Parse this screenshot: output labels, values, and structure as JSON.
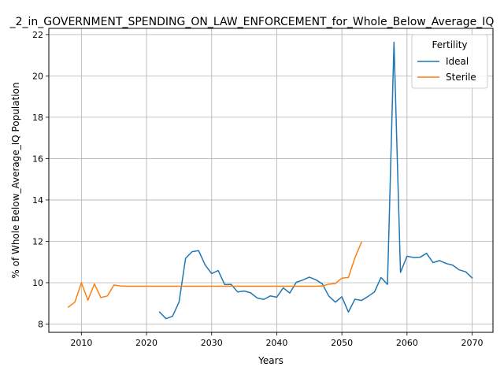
{
  "chart_data": {
    "type": "line",
    "title": "_2_in_GOVERNMENT_SPENDING_ON_LAW_ENFORCEMENT_for_Whole_Below_Average_IQ",
    "xlabel": "Years",
    "ylabel": "% of Whole Below_Average_IQ Population",
    "xlim": [
      2005.0,
      2073.2
    ],
    "ylim": [
      7.6,
      22.3
    ],
    "xticks": [
      2010,
      2020,
      2030,
      2040,
      2050,
      2060,
      2070
    ],
    "yticks": [
      8,
      10,
      12,
      14,
      16,
      18,
      20,
      22
    ],
    "grid": true,
    "legend": {
      "title": "Fertility",
      "position": "top-right"
    },
    "series": [
      {
        "name": "Ideal",
        "color": "#1f77b4",
        "x": [
          2022,
          2023,
          2024,
          2025,
          2026,
          2027,
          2028,
          2029,
          2030,
          2031,
          2032,
          2033,
          2034,
          2035,
          2036,
          2037,
          2038,
          2039,
          2040,
          2041,
          2042,
          2043,
          2044,
          2045,
          2046,
          2047,
          2048,
          2049,
          2050,
          2051,
          2052,
          2053,
          2054,
          2055,
          2056,
          2057,
          2058,
          2059,
          2060,
          2061,
          2062,
          2063,
          2064,
          2065,
          2066,
          2067,
          2068,
          2069,
          2070
        ],
        "y": [
          8.58,
          8.26,
          8.38,
          9.07,
          11.18,
          11.5,
          11.55,
          10.86,
          10.44,
          10.59,
          9.91,
          9.92,
          9.55,
          9.6,
          9.51,
          9.26,
          9.19,
          9.36,
          9.3,
          9.75,
          9.5,
          10.02,
          10.13,
          10.27,
          10.14,
          9.94,
          9.35,
          9.06,
          9.32,
          8.58,
          9.2,
          9.14,
          9.33,
          9.55,
          10.25,
          9.92,
          21.63,
          10.5,
          11.28,
          11.22,
          11.23,
          11.42,
          10.97,
          11.07,
          10.93,
          10.85,
          10.62,
          10.53,
          10.23
        ]
      },
      {
        "name": "Sterile",
        "color": "#ff7f0e",
        "x": [
          2008,
          2009,
          2010,
          2011,
          2012,
          2013,
          2014,
          2015,
          2016,
          2017,
          2018,
          2019,
          2020,
          2021,
          2022,
          2023,
          2024,
          2025,
          2026,
          2027,
          2028,
          2029,
          2030,
          2031,
          2032,
          2033,
          2034,
          2035,
          2036,
          2037,
          2038,
          2039,
          2040,
          2041,
          2042,
          2043,
          2044,
          2045,
          2046,
          2047,
          2048,
          2049,
          2050,
          2051,
          2052,
          2053
        ],
        "y": [
          8.82,
          9.06,
          10.0,
          9.15,
          9.94,
          9.28,
          9.36,
          9.89,
          9.84,
          9.83,
          9.83,
          9.83,
          9.83,
          9.83,
          9.83,
          9.83,
          9.83,
          9.83,
          9.83,
          9.83,
          9.83,
          9.83,
          9.83,
          9.83,
          9.83,
          9.83,
          9.83,
          9.83,
          9.83,
          9.83,
          9.83,
          9.83,
          9.83,
          9.83,
          9.83,
          9.83,
          9.83,
          9.83,
          9.83,
          9.84,
          9.93,
          9.96,
          10.22,
          10.25,
          11.2,
          11.95
        ]
      }
    ]
  }
}
